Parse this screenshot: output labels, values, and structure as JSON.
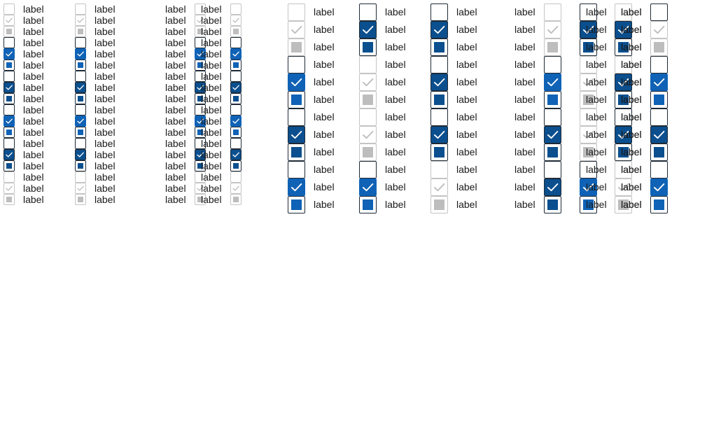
{
  "label_text": "label",
  "colors": {
    "primary": "#0f62b5",
    "primary_dark": "#0b4f8e",
    "border_dark": "#1f2a36",
    "border_light": "#c4c4c4",
    "disabled_fill": "#bdbdbd",
    "check_disabled": "#bdbdbd",
    "text": "#1a1a1a"
  },
  "icons": {
    "check": "checkmark-icon",
    "indeterminate": "indeterminate-square-icon"
  },
  "small_row_states": [
    "unchecked-disabled",
    "checked-disabled",
    "indeterminate-disabled",
    "unchecked",
    "checked",
    "indeterminate",
    "unchecked",
    "checked-dark",
    "indeterminate-dark",
    "unchecked",
    "checked",
    "indeterminate",
    "unchecked",
    "checked-dark",
    "indeterminate-dark",
    "unchecked-disabled",
    "checked-disabled",
    "indeterminate-disabled"
  ],
  "large_row_states": [
    "unchecked",
    "checked-disabled",
    "indeterminate-disabled",
    "unchecked",
    "checked",
    "indeterminate",
    "unchecked",
    "checked-dark",
    "indeterminate-dark",
    "unchecked",
    "checked",
    "indeterminate"
  ],
  "large_column_variants": [
    [
      "unchecked-disabled",
      "checked-disabled",
      "indeterminate-disabled",
      "unchecked",
      "checked",
      "indeterminate",
      "unchecked",
      "checked-dark",
      "indeterminate-dark",
      "unchecked",
      "checked",
      "indeterminate"
    ],
    [
      "unchecked",
      "checked-dark",
      "indeterminate-dark",
      "unchecked-disabled",
      "checked-disabled",
      "indeterminate-disabled",
      "unchecked-disabled",
      "checked-disabled",
      "indeterminate-disabled",
      "unchecked",
      "checked",
      "indeterminate"
    ],
    [
      "unchecked",
      "checked-dark",
      "indeterminate-dark",
      "unchecked",
      "checked-dark",
      "indeterminate-dark",
      "unchecked",
      "checked-dark",
      "indeterminate-dark",
      "unchecked-disabled",
      "checked-disabled",
      "indeterminate-disabled"
    ],
    [
      "unchecked-disabled",
      "checked-disabled",
      "indeterminate-disabled",
      "unchecked",
      "checked",
      "indeterminate",
      "unchecked",
      "checked-dark",
      "indeterminate-dark",
      "unchecked",
      "checked-dark",
      "indeterminate-dark"
    ],
    [
      "unchecked",
      "checked-dark",
      "indeterminate-dark",
      "unchecked-disabled",
      "checked-disabled",
      "indeterminate-disabled",
      "unchecked-disabled",
      "checked-disabled",
      "indeterminate-disabled",
      "unchecked",
      "checked",
      "indeterminate"
    ],
    [
      "unchecked-disabled",
      "checked-dark",
      "indeterminate-dark",
      "unchecked-disabled",
      "checked-dark",
      "indeterminate-dark",
      "unchecked",
      "checked-dark",
      "indeterminate-dark",
      "unchecked-disabled",
      "checked-disabled",
      "indeterminate-disabled"
    ]
  ]
}
